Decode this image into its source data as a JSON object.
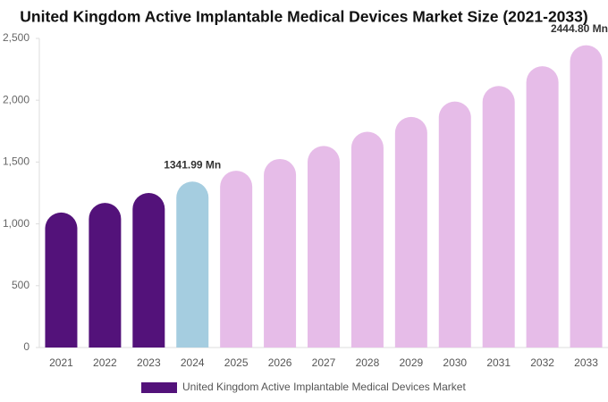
{
  "chart_data": {
    "type": "bar",
    "title": "United Kingdom Active Implantable Medical Devices Market Size (2021-2033)",
    "categories": [
      "2021",
      "2022",
      "2023",
      "2024",
      "2025",
      "2026",
      "2027",
      "2028",
      "2029",
      "2030",
      "2031",
      "2032",
      "2033"
    ],
    "series": [
      {
        "name": "United Kingdom Active Implantable Medical Devices Market",
        "color": "#53127a",
        "values": [
          1092,
          1170,
          1250,
          1341.99,
          1430,
          1525,
          1630,
          1745,
          1865,
          1990,
          2115,
          2275,
          2444.8
        ],
        "value_labels": [
          null,
          null,
          null,
          "1341.99 Mn",
          null,
          null,
          null,
          null,
          null,
          null,
          null,
          null,
          "2444.80 Mn"
        ],
        "bar_colors": [
          "#53127a",
          "#53127a",
          "#53127a",
          "#a5cde0",
          "#e6bce8",
          "#e6bce8",
          "#e6bce8",
          "#e6bce8",
          "#e6bce8",
          "#e6bce8",
          "#e6bce8",
          "#e6bce8",
          "#e6bce8"
        ]
      }
    ],
    "ylim": [
      0,
      2500
    ],
    "yticks": [
      0,
      500,
      {
        "value": 1000,
        "label": "1,000"
      },
      {
        "value": 1500,
        "label": "1,500"
      },
      {
        "value": 2000,
        "label": "2,000"
      },
      {
        "value": 2500,
        "label": "2,500"
      }
    ],
    "grid": false,
    "legend": "bottom"
  }
}
